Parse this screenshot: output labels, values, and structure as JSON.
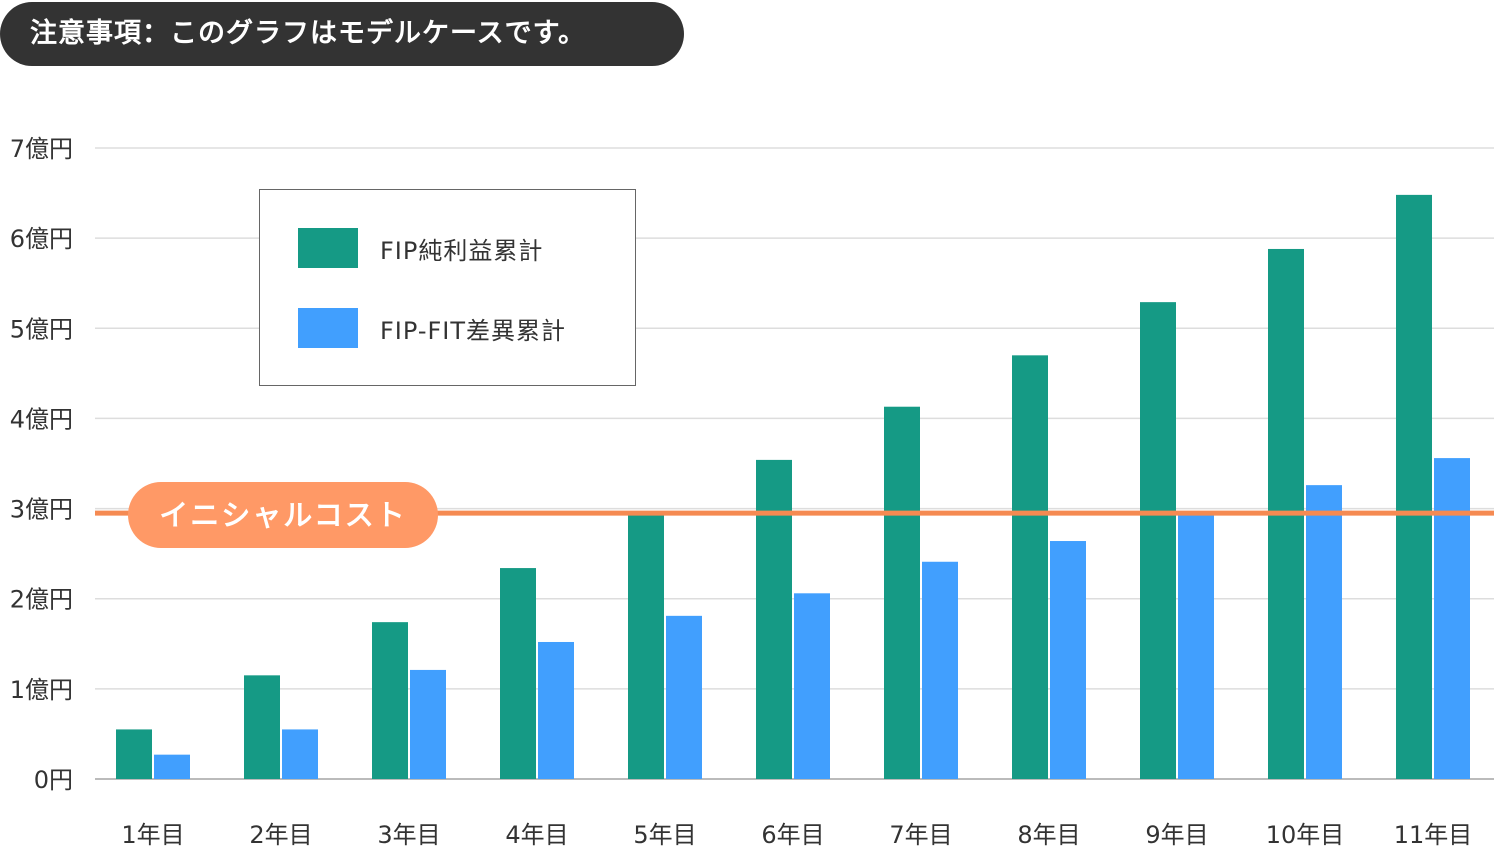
{
  "notice": "注意事項：このグラフはモデルケースです。",
  "chart_data": {
    "type": "bar",
    "title": "",
    "xlabel": "",
    "ylabel": "",
    "ylim": [
      0,
      7
    ],
    "y_unit": "億円",
    "y_ticks": [
      "0円",
      "1億円",
      "2億円",
      "3億円",
      "4億円",
      "5億円",
      "6億円",
      "7億円"
    ],
    "y_tick_values": [
      0,
      1,
      2,
      3,
      4,
      5,
      6,
      7
    ],
    "grid": true,
    "legend_position": "top-left",
    "categories": [
      "1年目",
      "2年目",
      "3年目",
      "4年目",
      "5年目",
      "6年目",
      "7年目",
      "8年目",
      "9年目",
      "10年目",
      "11年目"
    ],
    "series": [
      {
        "name": "FIP純利益累計",
        "color": "#159a85",
        "values": [
          0.55,
          1.15,
          1.74,
          2.34,
          2.93,
          3.54,
          4.13,
          4.7,
          5.29,
          5.88,
          6.48
        ]
      },
      {
        "name": "FIP-FIT差異累計",
        "color": "#419ffe",
        "values": [
          0.27,
          0.55,
          1.21,
          1.52,
          1.81,
          2.06,
          2.41,
          2.64,
          2.94,
          3.26,
          3.56
        ]
      }
    ],
    "annotations": [
      {
        "type": "hline",
        "label": "イニシャルコスト",
        "value": 2.95,
        "color": "#f58a52"
      }
    ]
  }
}
